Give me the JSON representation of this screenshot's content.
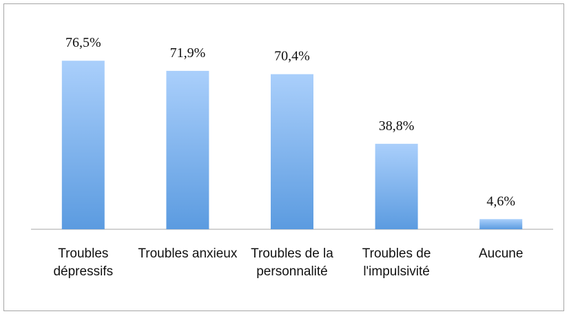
{
  "chart_data": {
    "type": "bar",
    "categories": [
      "Troubles dépressifs",
      "Troubles anxieux",
      "Troubles de la personnalité",
      "Troubles de l'impulsivité",
      "Aucune"
    ],
    "values": [
      76.5,
      71.9,
      70.4,
      38.8,
      4.6
    ],
    "value_labels": [
      "76,5%",
      "71,9%",
      "70,4%",
      "38,8%",
      "4,6%"
    ],
    "color": "#5b9be0"
  }
}
